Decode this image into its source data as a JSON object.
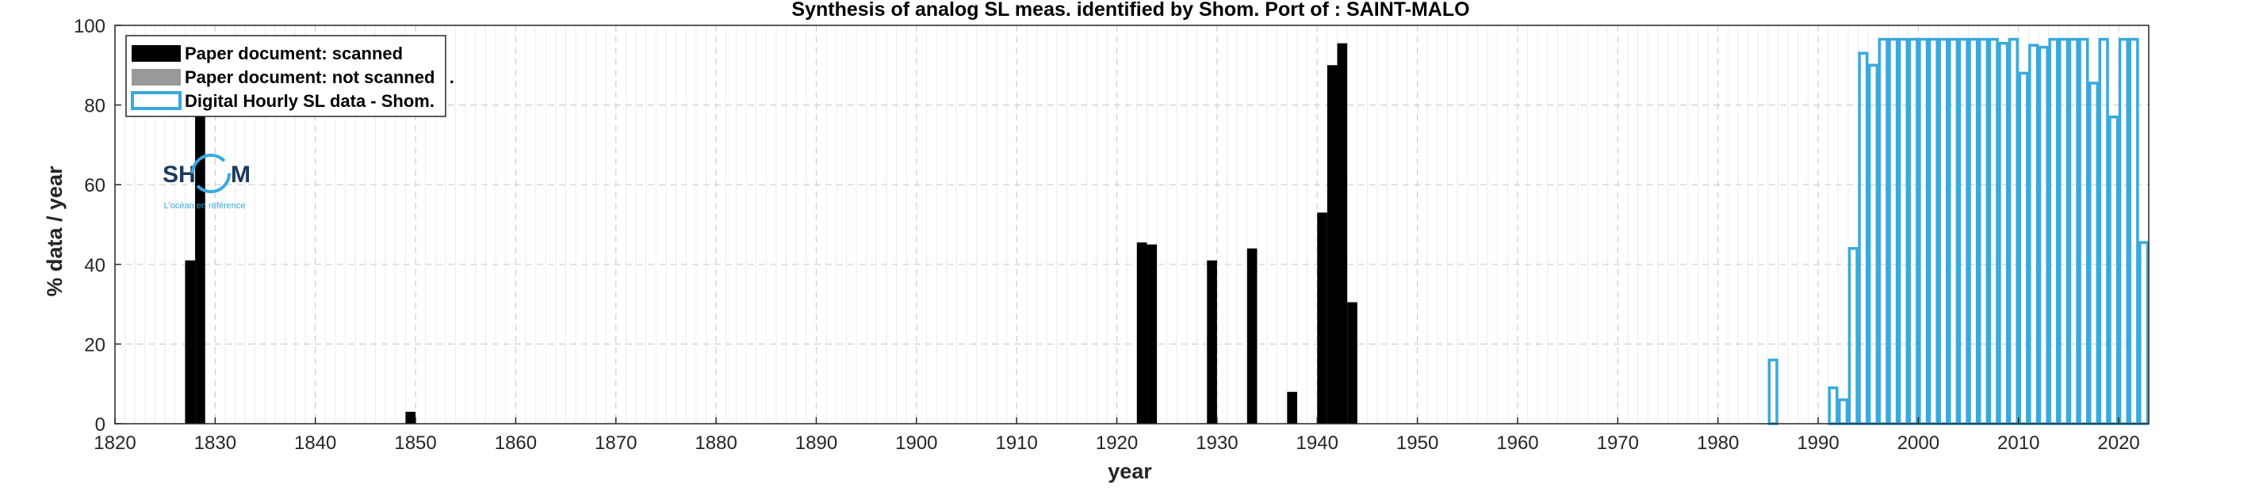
{
  "chart_data": {
    "type": "bar",
    "title": "Synthesis of analog SL meas. identified by Shom. Port of : SAINT-MALO",
    "xlabel": "year",
    "ylabel": "% data / year",
    "xlim": [
      1820,
      2023
    ],
    "ylim": [
      0,
      100
    ],
    "xticks": [
      1820,
      1830,
      1840,
      1850,
      1860,
      1870,
      1880,
      1890,
      1900,
      1910,
      1920,
      1930,
      1940,
      1950,
      1960,
      1970,
      1980,
      1990,
      2000,
      2010,
      2020
    ],
    "yticks": [
      0,
      20,
      40,
      60,
      80,
      100
    ],
    "grid": true,
    "legend_position": "top-left",
    "legend": [
      {
        "label": "Paper document: scanned",
        "style": "filled",
        "color": "#000000"
      },
      {
        "label": "Paper document: not scanned   .",
        "style": "filled",
        "color": "#999999"
      },
      {
        "label": "Digital Hourly SL data - Shom.",
        "style": "outline",
        "color": "#3aa9dc"
      }
    ],
    "series": [
      {
        "name": "Paper document: scanned",
        "color": "#000000",
        "style": "filled",
        "points": [
          {
            "x": 1828,
            "y": 41
          },
          {
            "x": 1829,
            "y": 78
          },
          {
            "x": 1850,
            "y": 3
          },
          {
            "x": 1923,
            "y": 45.5
          },
          {
            "x": 1924,
            "y": 45
          },
          {
            "x": 1930,
            "y": 41
          },
          {
            "x": 1934,
            "y": 44
          },
          {
            "x": 1938,
            "y": 8
          },
          {
            "x": 1941,
            "y": 53
          },
          {
            "x": 1942,
            "y": 90
          },
          {
            "x": 1943,
            "y": 95.5
          },
          {
            "x": 1944,
            "y": 30.5
          }
        ]
      },
      {
        "name": "Paper document: not scanned   .",
        "color": "#999999",
        "style": "filled",
        "points": []
      },
      {
        "name": "Digital Hourly SL data - Shom.",
        "color": "#3aa9dc",
        "style": "outline",
        "points": [
          {
            "x": 1986,
            "y": 16
          },
          {
            "x": 1992,
            "y": 9
          },
          {
            "x": 1993,
            "y": 6
          },
          {
            "x": 1994,
            "y": 44
          },
          {
            "x": 1995,
            "y": 93
          },
          {
            "x": 1996,
            "y": 90
          },
          {
            "x": 1997,
            "y": 96.5
          },
          {
            "x": 1998,
            "y": 96.5
          },
          {
            "x": 1999,
            "y": 96.5
          },
          {
            "x": 2000,
            "y": 96.5
          },
          {
            "x": 2001,
            "y": 96.5
          },
          {
            "x": 2002,
            "y": 96.5
          },
          {
            "x": 2003,
            "y": 96.5
          },
          {
            "x": 2004,
            "y": 96.5
          },
          {
            "x": 2005,
            "y": 96.5
          },
          {
            "x": 2006,
            "y": 96.5
          },
          {
            "x": 2007,
            "y": 96.5
          },
          {
            "x": 2008,
            "y": 96.5
          },
          {
            "x": 2009,
            "y": 95.5
          },
          {
            "x": 2010,
            "y": 96.5
          },
          {
            "x": 2011,
            "y": 88
          },
          {
            "x": 2012,
            "y": 95
          },
          {
            "x": 2013,
            "y": 94.5
          },
          {
            "x": 2014,
            "y": 96.5
          },
          {
            "x": 2015,
            "y": 96.5
          },
          {
            "x": 2016,
            "y": 96.5
          },
          {
            "x": 2017,
            "y": 96.5
          },
          {
            "x": 2018,
            "y": 85.5
          },
          {
            "x": 2019,
            "y": 96.5
          },
          {
            "x": 2020,
            "y": 77
          },
          {
            "x": 2021,
            "y": 96.5
          },
          {
            "x": 2022,
            "y": 96.5
          },
          {
            "x": 2023,
            "y": 45.5
          }
        ]
      }
    ]
  },
  "logo": {
    "text_left": "SH",
    "text_right": "M",
    "tagline": "L'océan en référence"
  }
}
